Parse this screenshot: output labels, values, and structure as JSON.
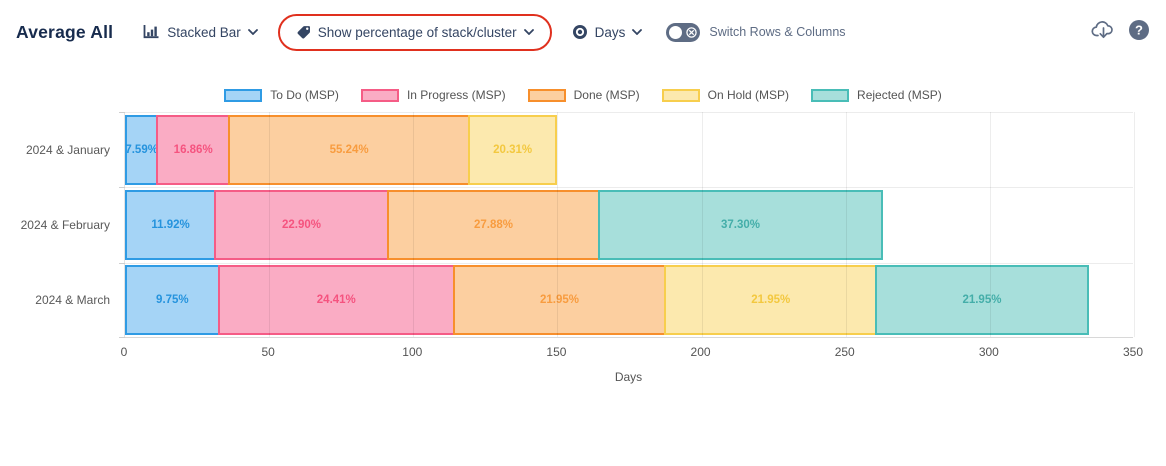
{
  "header": {
    "title": "Average All",
    "chart_type_label": "Stacked Bar",
    "percent_label": "Show percentage of stack/cluster",
    "unit_label": "Days",
    "switch_label": "Switch Rows & Columns",
    "toggle_state": "off",
    "icons": {
      "chart_type": "bar-chart-icon",
      "percent": "tag-icon",
      "unit": "target-icon",
      "right": [
        "cloud-download-icon",
        "help-icon"
      ]
    }
  },
  "colors": {
    "title_text": "#172B4D",
    "control_text": "#344563",
    "muted_text": "#5E6C84",
    "annotation_red": "#E0301E",
    "axis_text": "#545454",
    "row_label_text": "#595959"
  },
  "chart_data": {
    "type": "bar",
    "orientation": "horizontal",
    "stacked": true,
    "value_display": "percent_of_stack",
    "title": "",
    "xlabel": "Days",
    "ylabel": "",
    "xlim": [
      0,
      350
    ],
    "xticks": [
      0,
      50,
      100,
      150,
      200,
      250,
      300,
      350
    ],
    "grid": true,
    "legend_position": "top-center",
    "series": [
      {
        "name": "To Do (MSP)",
        "fill": "#A5D4F6",
        "border": "#2F9BE4",
        "text": "#2593DD"
      },
      {
        "name": "In Progress (MSP)",
        "fill": "#FAACC4",
        "border": "#F55C86",
        "text": "#F5537F"
      },
      {
        "name": "Done (MSP)",
        "fill": "#FCCFA0",
        "border": "#F78F2C",
        "text": "#F89C3F"
      },
      {
        "name": "On Hold (MSP)",
        "fill": "#FCE9AE",
        "border": "#F7CE4D",
        "text": "#F3C83F"
      },
      {
        "name": "Rejected (MSP)",
        "fill": "#A7DFDB",
        "border": "#49BDB7",
        "text": "#44AEA9"
      }
    ],
    "categories": [
      "2024 & January",
      "2024 & February",
      "2024 & March"
    ],
    "rows": [
      {
        "category": "2024 & January",
        "total_days": 152,
        "percents": [
          "7.59",
          "16.86",
          "55.24",
          "20.31",
          null
        ]
      },
      {
        "category": "2024 & February",
        "total_days": 265,
        "percents": [
          "11.92",
          "22.90",
          "27.88",
          null,
          "37.30"
        ]
      },
      {
        "category": "2024 & March",
        "total_days": 337,
        "percents": [
          "9.75",
          "24.41",
          "21.95",
          "21.95",
          "21.95"
        ]
      }
    ]
  }
}
